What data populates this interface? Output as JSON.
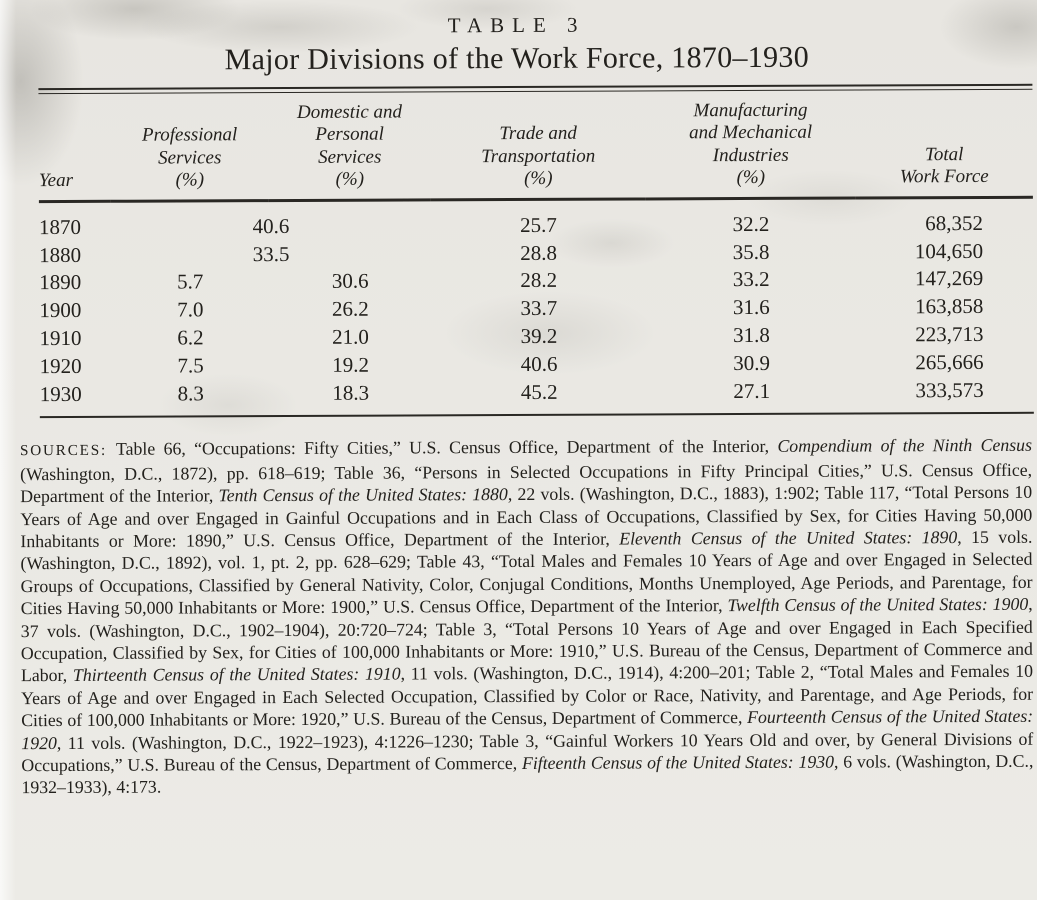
{
  "page": {
    "table_label": "TABLE 3",
    "title": "Major Divisions of the Work Force, 1870–1930"
  },
  "table": {
    "columns": [
      "Year",
      "Professional\nServices\n(%)",
      "Domestic and\nPersonal\nServices\n(%)",
      "Trade and\nTransportation\n(%)",
      "Manufacturing\nand Mechanical\nIndustries\n(%)",
      "Total\nWork Force"
    ],
    "rows": [
      {
        "cells": [
          {
            "v": "1870"
          },
          {
            "v": "40.6",
            "span": 2
          },
          {
            "v": "25.7"
          },
          {
            "v": "32.2"
          },
          {
            "v": "68,352"
          }
        ]
      },
      {
        "cells": [
          {
            "v": "1880"
          },
          {
            "v": "33.5",
            "span": 2
          },
          {
            "v": "28.8"
          },
          {
            "v": "35.8"
          },
          {
            "v": "104,650"
          }
        ]
      },
      {
        "cells": [
          {
            "v": "1890"
          },
          {
            "v": "5.7"
          },
          {
            "v": "30.6"
          },
          {
            "v": "28.2"
          },
          {
            "v": "33.2"
          },
          {
            "v": "147,269"
          }
        ]
      },
      {
        "cells": [
          {
            "v": "1900"
          },
          {
            "v": "7.0"
          },
          {
            "v": "26.2"
          },
          {
            "v": "33.7"
          },
          {
            "v": "31.6"
          },
          {
            "v": "163,858"
          }
        ]
      },
      {
        "cells": [
          {
            "v": "1910"
          },
          {
            "v": "6.2"
          },
          {
            "v": "21.0"
          },
          {
            "v": "39.2"
          },
          {
            "v": "31.8"
          },
          {
            "v": "223,713"
          }
        ]
      },
      {
        "cells": [
          {
            "v": "1920"
          },
          {
            "v": "7.5"
          },
          {
            "v": "19.2"
          },
          {
            "v": "40.6"
          },
          {
            "v": "30.9"
          },
          {
            "v": "265,666"
          }
        ]
      },
      {
        "cells": [
          {
            "v": "1930"
          },
          {
            "v": "8.3"
          },
          {
            "v": "18.3"
          },
          {
            "v": "45.2"
          },
          {
            "v": "27.1"
          },
          {
            "v": "333,573"
          }
        ]
      }
    ]
  },
  "sources": {
    "label": "SOURCES:",
    "segments": [
      {
        "t": "Table 66, “Occupations: Fifty Cities,” U.S. Census Office, Department of the Interior, ",
        "i": false
      },
      {
        "t": "Compendium of the Ninth Census",
        "i": true
      },
      {
        "t": " (Washington, D.C., 1872), pp. 618–619; Table 36, “Persons in Selected Occupations in Fifty Principal Cities,” U.S. Census Office, Department of the Interior, ",
        "i": false
      },
      {
        "t": "Tenth Census of the United States: 1880",
        "i": true
      },
      {
        "t": ", 22 vols. (Washington, D.C., 1883), 1:902; Table 117, “Total Persons 10 Years of Age and over Engaged in Gainful Occupations and in Each Class of Occupations, Classified by Sex, for Cities Having 50,000 Inhabitants or More: 1890,” U.S. Census Office, Department of the Interior, ",
        "i": false
      },
      {
        "t": "Eleventh Census of the United States: 1890",
        "i": true
      },
      {
        "t": ", 15 vols. (Washington, D.C., 1892), vol. 1, pt. 2, pp. 628–629; Table 43, “Total Males and Females 10 Years of Age and over Engaged in Selected Groups of Occupations, Classified by General Nativity, Color, Conjugal Conditions, Months Unemployed, Age Periods, and Parentage, for Cities Having 50,000 Inhabitants or More: 1900,” U.S. Census Office, Department of the Interior, ",
        "i": false
      },
      {
        "t": "Twelfth Census of the United States: 1900",
        "i": true
      },
      {
        "t": ", 37 vols. (Washington, D.C., 1902–1904), 20:720–724; Table 3, “Total Persons 10 Years of Age and over Engaged in Each Specified Occupation, Classified by Sex, for Cities of 100,000 Inhabitants or More: 1910,” U.S. Bureau of the Census, Department of Commerce and Labor, ",
        "i": false
      },
      {
        "t": "Thirteenth Census of the United States: 1910",
        "i": true
      },
      {
        "t": ", 11 vols. (Washington, D.C., 1914), 4:200–201; Table 2, “Total Males and Females 10 Years of Age and over Engaged in Each Selected Occupation, Classified by Color or Race, Nativity, and Parentage, and Age Periods, for Cities of 100,000 Inhabitants or More: 1920,” U.S. Bureau of the Census, Department of Commerce, ",
        "i": false
      },
      {
        "t": "Fourteenth Census of the United States: 1920",
        "i": true
      },
      {
        "t": ", 11 vols. (Washington, D.C., 1922–1923), 4:1226–1230; Table 3, “Gainful Workers 10 Years Old and over, by General Divisions of Occupations,” U.S. Bureau of the Census, Department of Commerce, ",
        "i": false
      },
      {
        "t": "Fifteenth Census of the United States: 1930",
        "i": true
      },
      {
        "t": ", 6 vols. (Washington, D.C., 1932–1933), 4:173.",
        "i": false
      }
    ]
  },
  "colors": {
    "paper": "#e9e7e2",
    "ink": "#23211d"
  }
}
